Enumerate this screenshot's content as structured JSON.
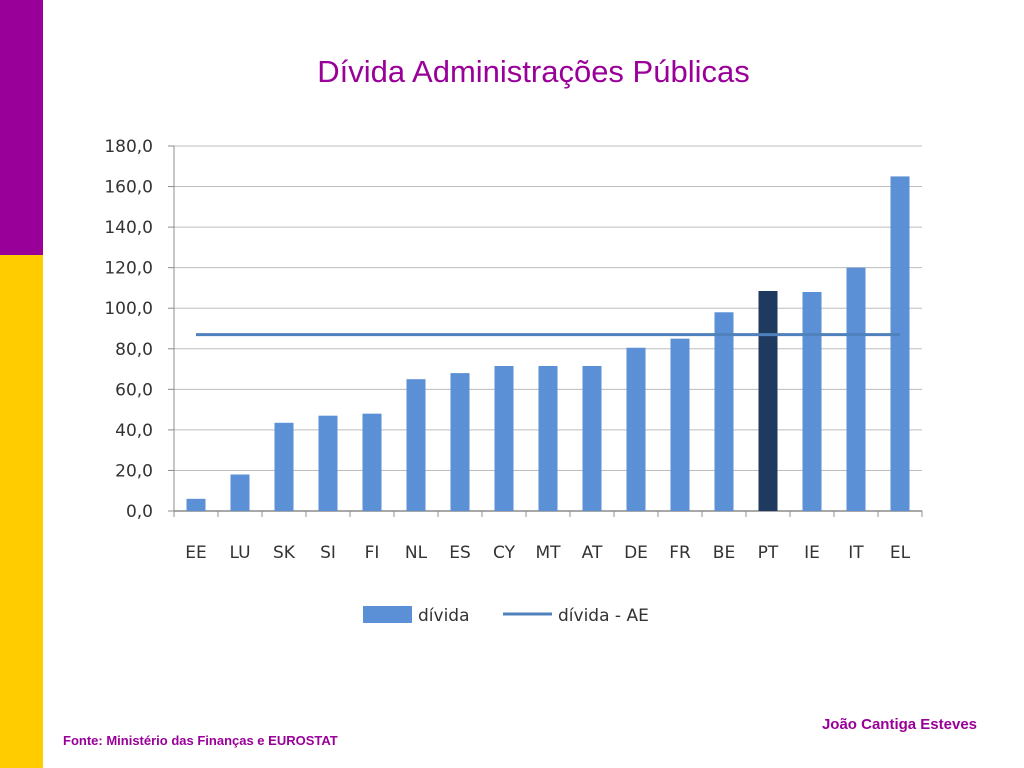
{
  "slide": {
    "title": "Dívida Administrações Públicas",
    "author": "João Cantiga Esteves",
    "source": "Fonte: Ministério das Finanças e EUROSTAT"
  },
  "chart_data": {
    "type": "bar",
    "categories": [
      "EE",
      "LU",
      "SK",
      "SI",
      "FI",
      "NL",
      "ES",
      "CY",
      "MT",
      "AT",
      "DE",
      "FR",
      "BE",
      "PT",
      "IE",
      "IT",
      "EL"
    ],
    "series": [
      {
        "name": "dívida",
        "type": "bar",
        "values": [
          6.0,
          18.0,
          43.5,
          47.0,
          48.0,
          65.0,
          68.0,
          71.5,
          71.5,
          71.5,
          80.5,
          85.0,
          98.0,
          108.5,
          108.0,
          120.0,
          165.0
        ],
        "color": "#5b8fd6",
        "highlight": {
          "category": "PT",
          "color": "#1f3a5f"
        }
      },
      {
        "name": "dívida - AE",
        "type": "line",
        "value": 87.0,
        "color": "#4f81bd"
      }
    ],
    "ylim": [
      0,
      180
    ],
    "yticks": [
      "0,0",
      "20,0",
      "40,0",
      "60,0",
      "80,0",
      "100,0",
      "120,0",
      "140,0",
      "160,0",
      "180,0"
    ],
    "grid": true,
    "legend_position": "bottom"
  }
}
